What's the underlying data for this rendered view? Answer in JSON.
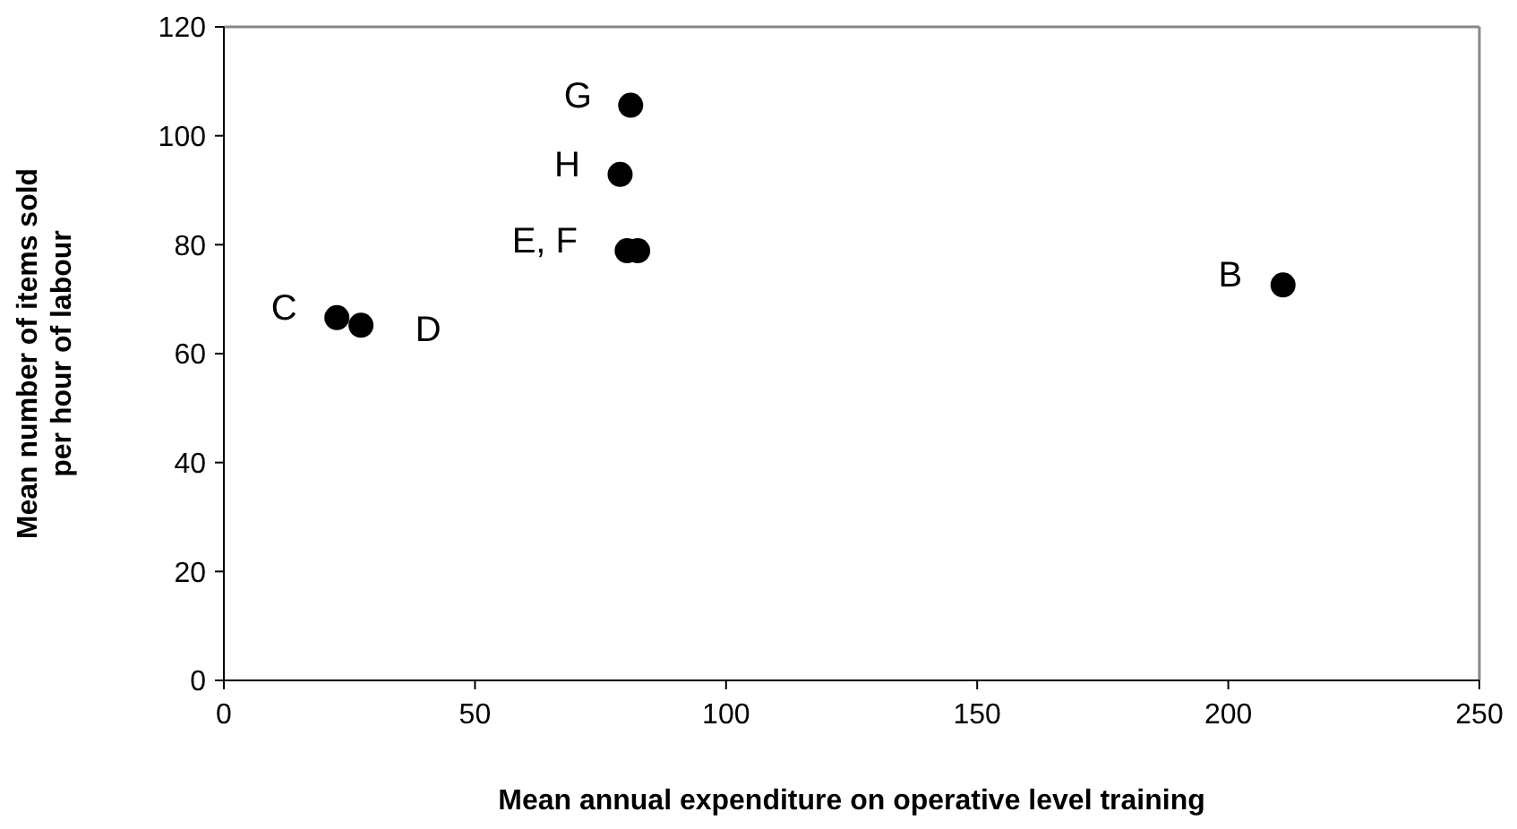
{
  "chart_data": {
    "type": "scatter",
    "xlabel": "Mean annual expenditure on operative level training",
    "ylabel": "Mean number of items sold\nper hour of labour",
    "x": [
      210.9,
      22.5,
      27.3,
      80.3,
      82.4,
      81.0,
      78.9
    ],
    "series": [
      {
        "color": "#000000",
        "values": [
          72.6,
          66.6,
          65.2,
          78.9,
          78.9,
          105.6,
          92.9
        ]
      }
    ],
    "xlim": [
      0,
      250
    ],
    "xticks": [
      0,
      50,
      100,
      150,
      200,
      250
    ],
    "ylim": [
      0,
      120
    ],
    "yticks": [
      0,
      20,
      40,
      60,
      80,
      100,
      120
    ],
    "marker": "circle",
    "grid": false,
    "annotations": [
      {
        "text": "B",
        "x": 210.9,
        "y": 72.6
      },
      {
        "text": "C",
        "x": 22.5,
        "y": 66.6
      },
      {
        "text": "D",
        "x": 27.3,
        "y": 65.2
      },
      {
        "text": "E, F",
        "x": 80.3,
        "y": 78.9
      },
      {
        "text": "G",
        "x": 81.0,
        "y": 105.6
      },
      {
        "text": "H",
        "x": 78.9,
        "y": 92.9
      }
    ]
  }
}
